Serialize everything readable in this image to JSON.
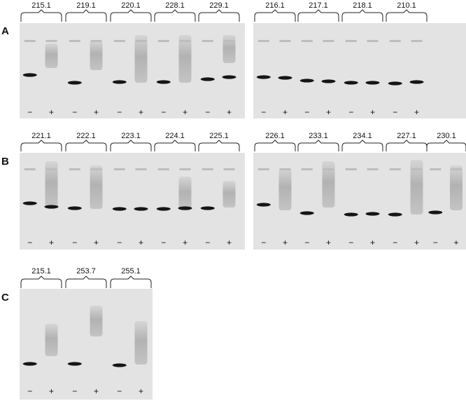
{
  "panels": [
    {
      "letter": "A",
      "groups": [
        {
          "label": "215.1"
        },
        {
          "label": "219.1"
        },
        {
          "label": "220.1"
        },
        {
          "label": "228.1"
        },
        {
          "label": "229.1"
        },
        {
          "label": "216.1"
        },
        {
          "label": "217.1"
        },
        {
          "label": "218.1"
        },
        {
          "label": "210.1"
        }
      ]
    },
    {
      "letter": "B",
      "groups": [
        {
          "label": "221.1"
        },
        {
          "label": "222.1"
        },
        {
          "label": "223.1"
        },
        {
          "label": "224.1"
        },
        {
          "label": "225.1"
        },
        {
          "label": "226.1"
        },
        {
          "label": "233.1"
        },
        {
          "label": "234.1"
        },
        {
          "label": "227.1"
        },
        {
          "label": "230.1"
        }
      ]
    },
    {
      "letter": "C",
      "groups": [
        {
          "label": "215.1"
        },
        {
          "label": "253.7"
        },
        {
          "label": "255.1"
        }
      ]
    }
  ],
  "lane_signs": {
    "minus": "−",
    "plus": "+"
  },
  "colors": {
    "gel": "#e3e3e3",
    "band": "#151515",
    "smear": "#8a8a8a"
  }
}
